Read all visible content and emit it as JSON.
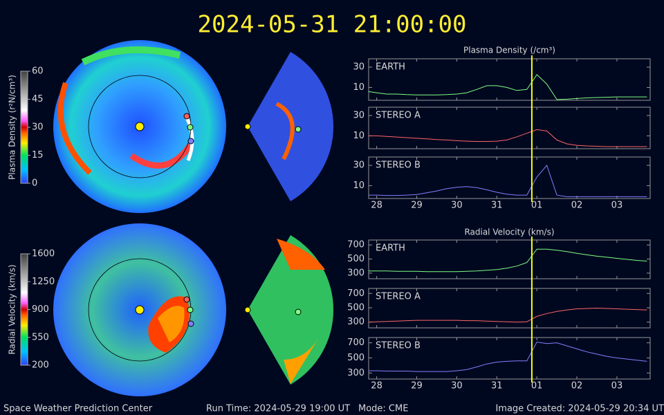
{
  "title": "2024-05-31 21:00:00",
  "footer": {
    "left": "Space Weather Prediction Center",
    "run_time": "Run Time: 2024-05-29 19:00 UT",
    "mode": "Mode: CME",
    "created": "Image Created: 2024-05-29 20:34 UT"
  },
  "colorbars": [
    {
      "label": "Plasma Density (r²N/cm³)",
      "lim": [
        0,
        60
      ],
      "ticks": [
        0,
        15,
        30,
        45,
        60
      ]
    },
    {
      "label": "Radial Velocity (km/s)",
      "lim": [
        200,
        1600
      ],
      "ticks": [
        200,
        550,
        900,
        1250,
        1600
      ]
    }
  ],
  "chart_data": [
    {
      "type": "line",
      "title": "Plasma Density (/cm³)",
      "log": true,
      "x": [
        -0.2,
        0,
        0.25,
        0.5,
        0.75,
        1,
        1.25,
        1.5,
        1.75,
        2,
        2.25,
        2.5,
        2.75,
        3,
        3.25,
        3.5,
        3.75,
        4,
        4.25,
        4.5,
        4.75,
        5,
        5.25,
        5.5,
        5.75,
        6,
        6.25,
        6.5,
        6.75
      ],
      "xlim": [
        -0.2,
        6.83
      ],
      "xticks": [
        {
          "value": 0,
          "label": "28"
        },
        {
          "value": 1,
          "label": "29"
        },
        {
          "value": 2,
          "label": "30"
        },
        {
          "value": 3,
          "label": "31"
        },
        {
          "value": 4,
          "label": "01"
        },
        {
          "value": 5,
          "label": "02"
        },
        {
          "value": 6,
          "label": "03"
        }
      ],
      "ylim": [
        5,
        47
      ],
      "yticks": [
        10,
        30
      ],
      "marker_x": 3.875,
      "marker_color": "#ffff00",
      "series": [
        {
          "name": "EARTH",
          "color": "#80ff80",
          "values": [
            8,
            7.5,
            7,
            7,
            6.8,
            6.7,
            6.7,
            6.7,
            6.8,
            7,
            7.5,
            9,
            11,
            11,
            10,
            8.5,
            9,
            20,
            12,
            5.2,
            5.3,
            5.5,
            5.7,
            5.8,
            5.9,
            6,
            6,
            6,
            6
          ]
        },
        {
          "name": "STEREO A",
          "color": "#ff6666",
          "values": [
            10,
            10,
            9.7,
            9.4,
            9.1,
            8.8,
            8.5,
            8.2,
            8,
            7.7,
            7.5,
            7.4,
            7.4,
            7.5,
            8,
            9.5,
            11.5,
            14,
            13,
            8,
            6.5,
            6,
            5.8,
            5.7,
            5.6,
            5.6,
            5.6,
            5.6,
            5.6
          ]
        },
        {
          "name": "STEREO B",
          "color": "#8080ff",
          "values": [
            6,
            6,
            5.9,
            5.9,
            6,
            6.2,
            6.8,
            7.5,
            8.5,
            9.2,
            9.5,
            9,
            8,
            7,
            6.3,
            6,
            6,
            16,
            30,
            6,
            5.5,
            5.5,
            5.5,
            5.5,
            5.5,
            5.5,
            5.5,
            5.5,
            5.5
          ]
        }
      ]
    },
    {
      "type": "line",
      "title": "Radial Velocity (km/s)",
      "log": false,
      "x": [
        -0.2,
        0,
        0.25,
        0.5,
        0.75,
        1,
        1.25,
        1.5,
        1.75,
        2,
        2.25,
        2.5,
        2.75,
        3,
        3.25,
        3.5,
        3.75,
        4,
        4.25,
        4.5,
        4.75,
        5,
        5.25,
        5.5,
        5.75,
        6,
        6.25,
        6.5,
        6.75
      ],
      "xlim": [
        -0.2,
        6.83
      ],
      "xticks": [
        {
          "value": 0,
          "label": "28"
        },
        {
          "value": 1,
          "label": "29"
        },
        {
          "value": 2,
          "label": "30"
        },
        {
          "value": 3,
          "label": "31"
        },
        {
          "value": 4,
          "label": "01"
        },
        {
          "value": 5,
          "label": "02"
        },
        {
          "value": 6,
          "label": "03"
        }
      ],
      "ylim": [
        220,
        770
      ],
      "yticks": [
        300,
        500,
        700
      ],
      "marker_x": 3.875,
      "marker_color": "#ffff00",
      "series": [
        {
          "name": "EARTH",
          "color": "#80ff80",
          "values": [
            330,
            330,
            330,
            325,
            325,
            325,
            320,
            320,
            320,
            320,
            325,
            330,
            340,
            350,
            370,
            400,
            450,
            640,
            640,
            625,
            605,
            580,
            560,
            540,
            525,
            510,
            495,
            480,
            470
          ]
        },
        {
          "name": "STEREO A",
          "color": "#ff6666",
          "values": [
            300,
            305,
            310,
            315,
            320,
            325,
            325,
            325,
            325,
            325,
            320,
            320,
            315,
            310,
            305,
            300,
            305,
            380,
            420,
            450,
            470,
            485,
            490,
            495,
            490,
            485,
            480,
            475,
            470
          ]
        },
        {
          "name": "STEREO B",
          "color": "#8080ff",
          "values": [
            330,
            330,
            325,
            325,
            325,
            320,
            320,
            320,
            320,
            330,
            345,
            380,
            420,
            445,
            455,
            460,
            460,
            710,
            690,
            700,
            660,
            620,
            580,
            550,
            520,
            500,
            485,
            470,
            455
          ]
        }
      ]
    }
  ]
}
